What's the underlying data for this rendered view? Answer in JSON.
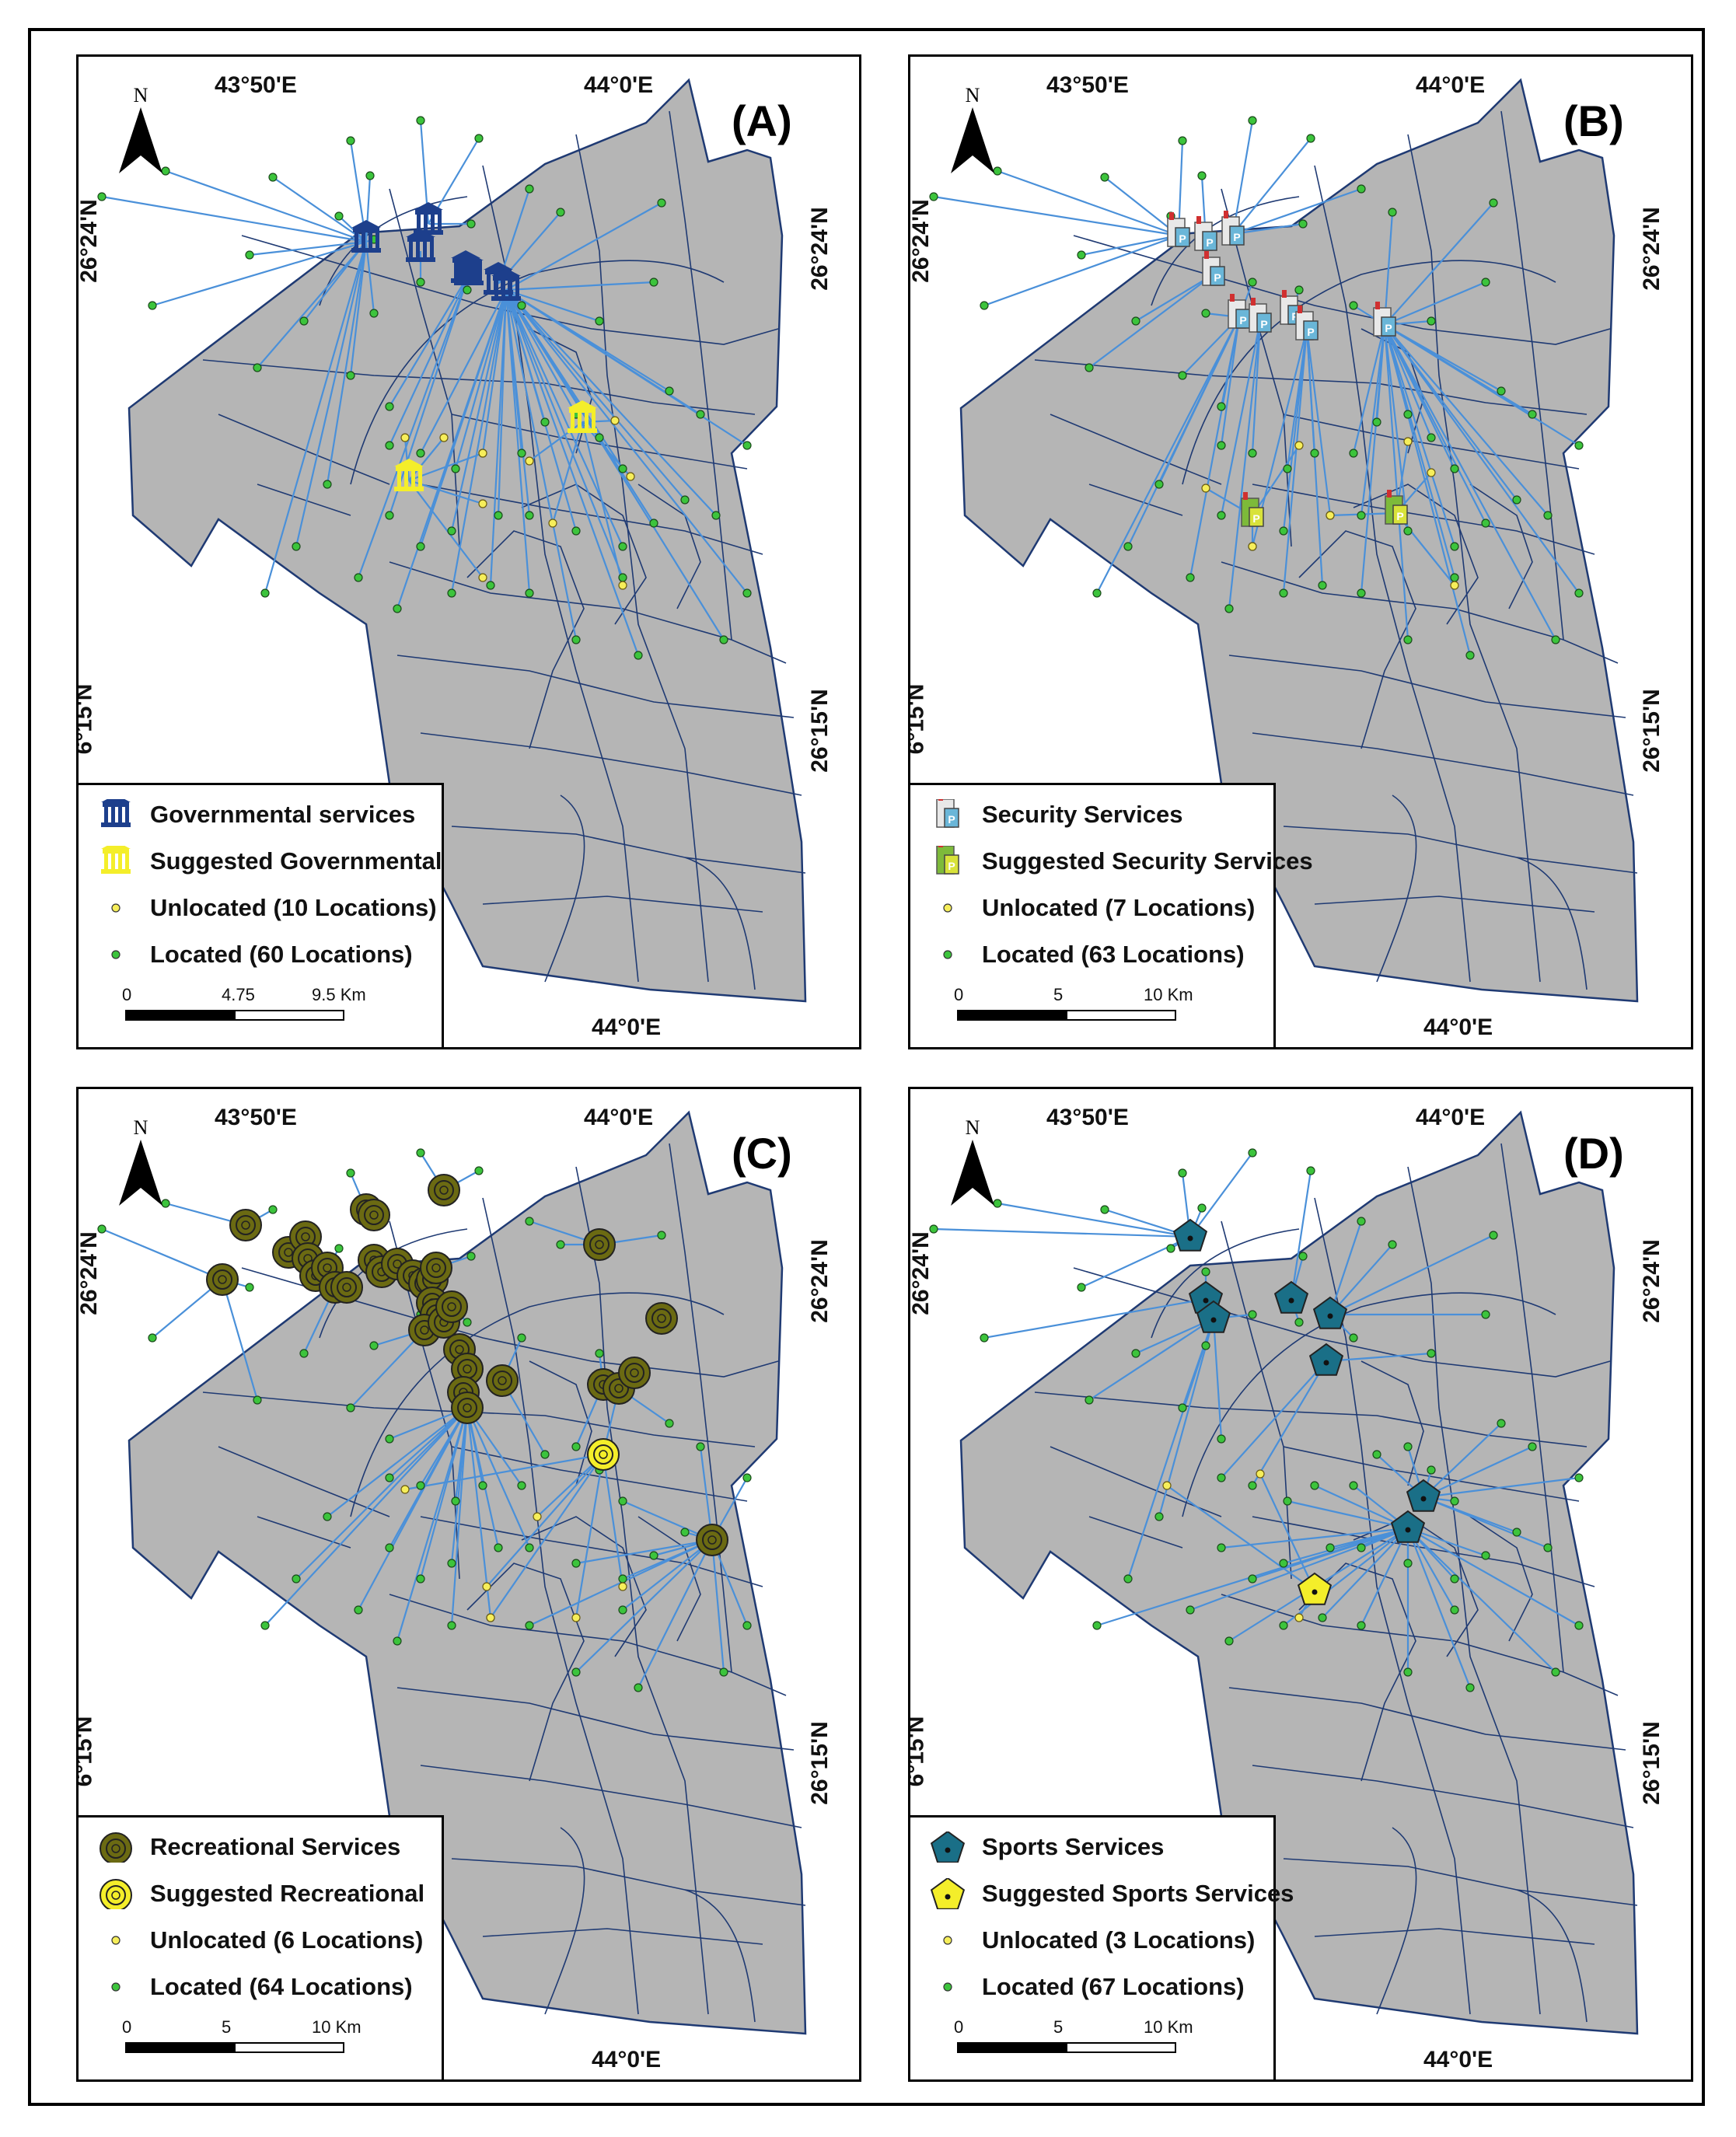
{
  "coordinates": {
    "lon_left": "43°50'E",
    "lon_right": "44°0'E",
    "lon_bottom": "44°0'E",
    "lat_upper": "26°24'N",
    "lat_lower": "26°15'N",
    "lat_lower_clipped": "6°15'N"
  },
  "north_arrow_label": "N",
  "colors": {
    "district_fill": "#b5b5b5",
    "boundary_line": "#1f3a73",
    "link_line": "#4a90d9",
    "located_point": "#3cc43c",
    "unlocated_point": "#f6ee5a",
    "governmental_icon": "#1d3f8c",
    "suggested_icon": "#f4ee2a",
    "recreational_icon": "#6b6a12",
    "sports_icon": "#1a6f87"
  },
  "panels": [
    {
      "letter": "(A)",
      "legend": [
        {
          "icon": "governmental-building-icon",
          "label": "Governmental services"
        },
        {
          "icon": "suggested-governmental-building-icon",
          "label": "Suggested Governmental"
        },
        {
          "icon": "unlocated-point-icon",
          "label": "Unlocated (10 Locations)"
        },
        {
          "icon": "located-point-icon",
          "label": "Located (60 Locations)"
        }
      ],
      "scale": {
        "labels": [
          "0",
          "4.75",
          "9.5 Km"
        ]
      }
    },
    {
      "letter": "(B)",
      "legend": [
        {
          "icon": "security-building-icon",
          "label": "Security Services"
        },
        {
          "icon": "suggested-security-building-icon",
          "label": "Suggested Security Services"
        },
        {
          "icon": "unlocated-point-icon",
          "label": "Unlocated (7 Locations)"
        },
        {
          "icon": "located-point-icon",
          "label": "Located (63 Locations)"
        }
      ],
      "scale": {
        "labels": [
          "0",
          "5",
          "10 Km"
        ]
      }
    },
    {
      "letter": "(C)",
      "legend": [
        {
          "icon": "recreational-circle-icon",
          "label": "Recreational Services"
        },
        {
          "icon": "suggested-recreational-circle-icon",
          "label": "Suggested Recreational"
        },
        {
          "icon": "unlocated-point-icon",
          "label": "Unlocated (6 Locations)"
        },
        {
          "icon": "located-point-icon",
          "label": "Located (64 Locations)"
        }
      ],
      "scale": {
        "labels": [
          "0",
          "5",
          "10 Km"
        ]
      }
    },
    {
      "letter": "(D)",
      "legend": [
        {
          "icon": "sports-pentagon-icon",
          "label": "Sports Services"
        },
        {
          "icon": "suggested-sports-pentagon-icon",
          "label": "Suggested Sports Services"
        },
        {
          "icon": "unlocated-point-icon",
          "label": "Unlocated (3 Locations)"
        },
        {
          "icon": "located-point-icon",
          "label": "Located (67 Locations)"
        }
      ],
      "scale": {
        "labels": [
          "0",
          "5",
          "10 Km"
        ]
      }
    }
  ]
}
